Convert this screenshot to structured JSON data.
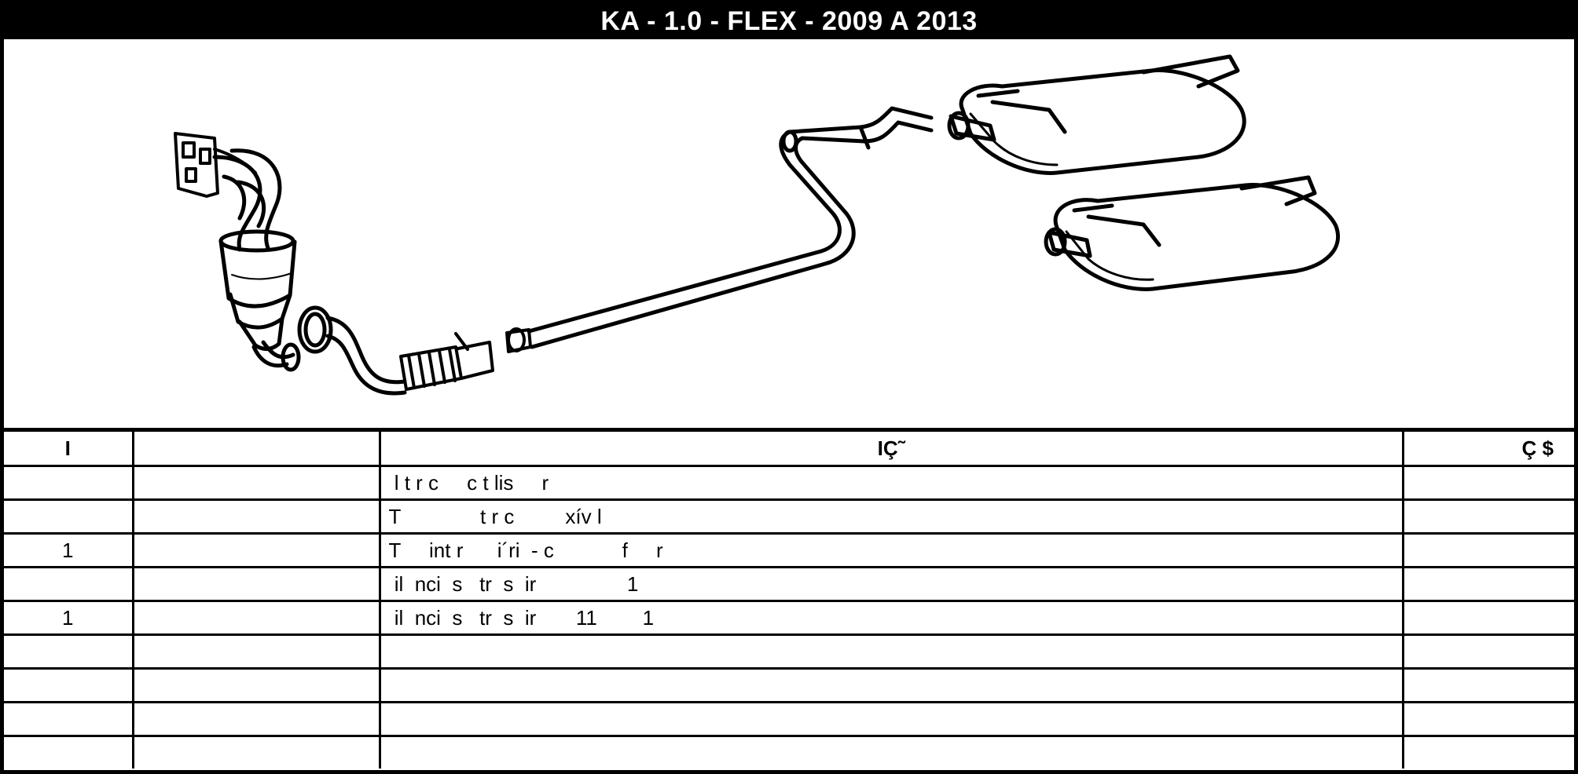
{
  "header": {
    "title": "KA - 1.0 - FLEX - 2009 A 2013"
  },
  "table": {
    "columns": [
      "I",
      "",
      "IÇ˜",
      "Ç       $"
    ],
    "rows": [
      {
        "qty": "",
        "code": "",
        "desc": " l t r c     c t lis     r",
        "price": ""
      },
      {
        "qty": "",
        "code": "",
        "desc": "T              t r c         xív l",
        "price": ""
      },
      {
        "qty": "1",
        "code": "",
        "desc": "T     int r      i´ri  - c            f     r",
        "price": ""
      },
      {
        "qty": "",
        "code": "",
        "desc": " il  nci  s   tr  s  ir                1",
        "price": ""
      },
      {
        "qty": "1",
        "code": "",
        "desc": " il  nci  s   tr  s  ir       11        1",
        "price": ""
      },
      {
        "qty": "",
        "code": "",
        "desc": "",
        "price": ""
      },
      {
        "qty": "",
        "code": "",
        "desc": "",
        "price": ""
      },
      {
        "qty": "",
        "code": "",
        "desc": "",
        "price": ""
      },
      {
        "qty": "",
        "code": "",
        "desc": "",
        "price": ""
      }
    ]
  }
}
